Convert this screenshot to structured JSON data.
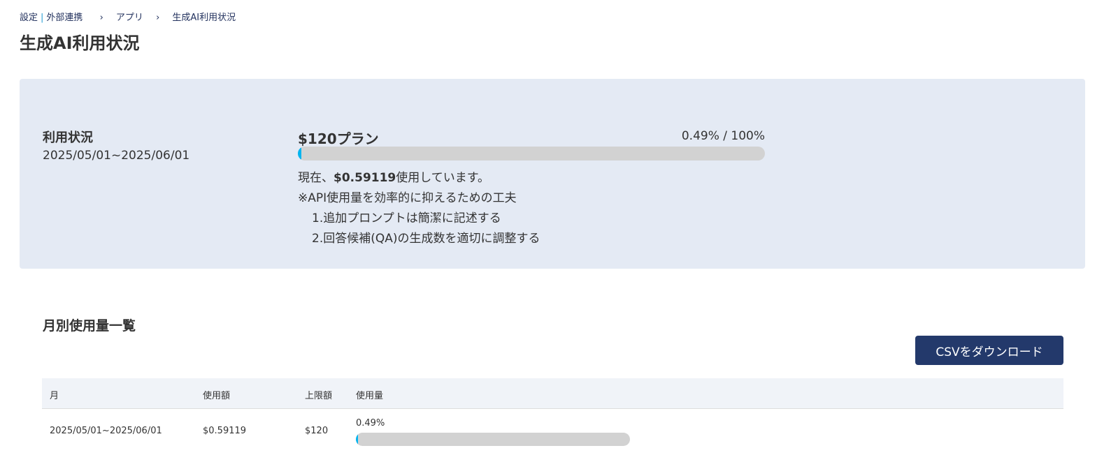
{
  "breadcrumb": {
    "settings": "設定",
    "separator": "|",
    "integration": "外部連携",
    "app": "アプリ",
    "current": "生成AI利用状況",
    "chevron": "›"
  },
  "page_title": "生成AI利用状況",
  "usage": {
    "label": "利用状況",
    "period": "2025/05/01~2025/06/01",
    "plan": "$120プラン",
    "percent_text": "0.49% / 100%",
    "progress_percent": 0.49,
    "current_prefix": "現在、",
    "current_amount": "$0.59119",
    "current_suffix": "使用しています。",
    "tips_title": "※API使用量を効率的に抑えるための工夫",
    "tip1": "1.追加プロンプトは簡潔に記述する",
    "tip2": "2.回答候補(QA)の生成数を適切に調整する"
  },
  "monthly": {
    "title": "月別使用量一覧",
    "csv_button": "CSVをダウンロード",
    "columns": [
      "月",
      "使用額",
      "上限額",
      "使用量"
    ],
    "rows": [
      {
        "month": "2025/05/01~2025/06/01",
        "amount": "$0.59119",
        "limit": "$120",
        "usage_text": "0.49%",
        "usage_percent": 0.49
      }
    ]
  },
  "colors": {
    "accent": "#00b4f0",
    "button": "#23396b",
    "card": "#e4eaf4"
  }
}
